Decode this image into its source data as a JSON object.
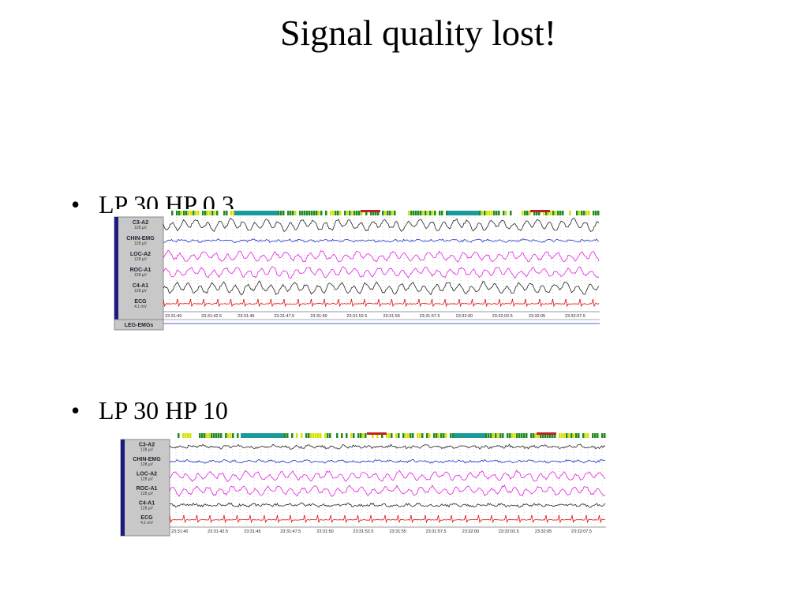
{
  "title": "Signal quality lost!",
  "sections": [
    {
      "bullet": "LP 30 HP 0.3",
      "channels": [
        {
          "name": "C3-A2",
          "scale": "128 µV"
        },
        {
          "name": "CHIN-EMG",
          "scale": "128 µV"
        },
        {
          "name": "LOC-A2",
          "scale": "128 µV"
        },
        {
          "name": "ROC-A1",
          "scale": "128 µV"
        },
        {
          "name": "C4-A1",
          "scale": "128 µV"
        },
        {
          "name": "ECG",
          "scale": "4.1 mV"
        }
      ],
      "times": [
        "23:31:40",
        "23:31:42.5",
        "23:31:45",
        "23:31:47.5",
        "23:31:50",
        "23:31:52.5",
        "23:31:55",
        "23:31:57.5",
        "23:32:00",
        "23:32:02.5",
        "23:32:05",
        "23:32:07.5"
      ],
      "extra_channel": "LEG-EMGs"
    },
    {
      "bullet": "LP 30 HP 10",
      "channels": [
        {
          "name": "C3-A2",
          "scale": "128 µV"
        },
        {
          "name": "CHIN-EMG",
          "scale": "128 µV"
        },
        {
          "name": "LOC-A2",
          "scale": "128 µV"
        },
        {
          "name": "ROC-A1",
          "scale": "128 µV"
        },
        {
          "name": "C4-A1",
          "scale": "128 µV"
        },
        {
          "name": "ECG",
          "scale": "4.1 mV"
        }
      ],
      "times": [
        "23:31:40",
        "23:31:42.5",
        "23:31:45",
        "23:31:47.5",
        "23:31:50",
        "23:31:52.5",
        "23:31:55",
        "23:31:57.5",
        "23:32:00",
        "23:32:02.5",
        "23:32:05",
        "23:32:07.5"
      ]
    }
  ]
}
